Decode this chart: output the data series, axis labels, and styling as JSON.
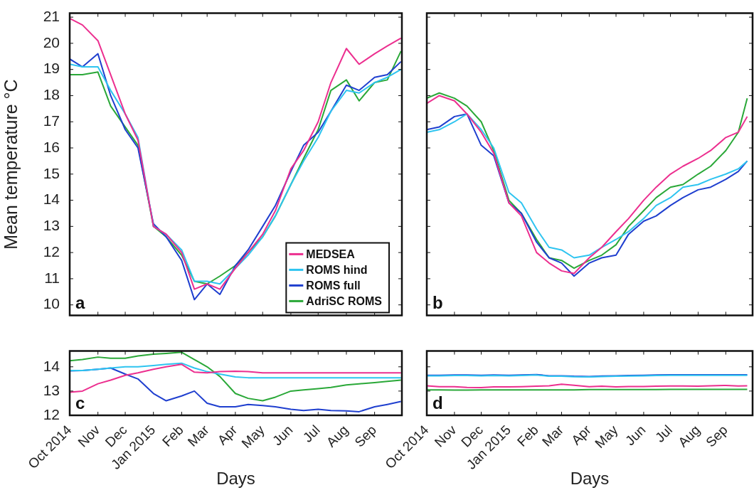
{
  "chart_data": [
    {
      "type": "line",
      "ylabel": "Mean temperature °C",
      "annotations": [
        "a"
      ],
      "legend": "bottom right",
      "tick_labels": "y",
      "x": [
        "2014-10-01",
        "2014-10-15",
        "2014-11-01",
        "2014-11-15",
        "2014-12-01",
        "2014-12-15",
        "2015-01-01",
        "2015-01-15",
        "2015-02-01",
        "2015-02-15",
        "2015-03-01",
        "2015-03-15",
        "2015-04-01",
        "2015-04-15",
        "2015-05-01",
        "2015-05-15",
        "2015-06-01",
        "2015-06-15",
        "2015-07-01",
        "2015-07-15",
        "2015-08-01",
        "2015-08-15",
        "2015-09-01",
        "2015-09-15",
        "2015-09-30"
      ],
      "xlim": [
        "2014-10-01",
        "2015-10-01"
      ],
      "xticks": [
        {
          "value": "2014-10-01",
          "label": null
        },
        {
          "value": "2014-11-01",
          "label": null
        },
        {
          "value": "2014-12-01",
          "label": null
        },
        {
          "value": "2015-01-01",
          "label": null
        },
        {
          "value": "2015-02-01",
          "label": null
        },
        {
          "value": "2015-03-01",
          "label": null
        },
        {
          "value": "2015-04-01",
          "label": null
        },
        {
          "value": "2015-05-01",
          "label": null
        },
        {
          "value": "2015-06-01",
          "label": null
        },
        {
          "value": "2015-07-01",
          "label": null
        },
        {
          "value": "2015-08-01",
          "label": null
        },
        {
          "value": "2015-09-01",
          "label": null
        }
      ],
      "ylim": [
        9.6,
        21.15
      ],
      "yticks": [
        10,
        11,
        12,
        13,
        14,
        15,
        16,
        17,
        18,
        19,
        20,
        21
      ],
      "series": [
        {
          "name": "MEDSEA",
          "color": "#ec2f8f",
          "values": [
            20.95,
            20.7,
            20.1,
            18.8,
            17.3,
            16.3,
            13.0,
            12.7,
            12.0,
            10.6,
            10.8,
            10.6,
            11.4,
            12.0,
            12.7,
            13.6,
            15.2,
            15.9,
            17.0,
            18.5,
            19.8,
            19.2,
            19.6,
            19.9,
            20.2
          ]
        },
        {
          "name": "ROMS hind",
          "color": "#2ec4f0",
          "values": [
            19.2,
            19.1,
            19.1,
            18.2,
            17.3,
            16.4,
            13.0,
            12.7,
            12.1,
            10.9,
            10.9,
            10.8,
            11.4,
            11.9,
            12.6,
            13.4,
            14.6,
            15.5,
            16.4,
            17.4,
            18.2,
            18.1,
            18.5,
            18.7,
            19.0
          ]
        },
        {
          "name": "ROMS full",
          "color": "#1f3fcf",
          "values": [
            19.4,
            19.1,
            19.6,
            18.0,
            16.7,
            16.0,
            13.1,
            12.6,
            11.7,
            10.2,
            10.8,
            10.4,
            11.5,
            12.1,
            13.0,
            13.8,
            15.1,
            16.1,
            16.6,
            17.4,
            18.4,
            18.2,
            18.7,
            18.8,
            19.3
          ]
        },
        {
          "name": "AdriSC ROMS",
          "color": "#2aa838",
          "values": [
            18.8,
            18.8,
            18.9,
            17.6,
            16.8,
            16.1,
            13.0,
            12.6,
            11.9,
            10.9,
            10.8,
            11.1,
            11.5,
            12.0,
            12.6,
            13.4,
            14.6,
            15.6,
            16.7,
            18.2,
            18.6,
            17.8,
            18.5,
            18.6,
            19.7
          ]
        }
      ]
    },
    {
      "type": "line",
      "annotations": [
        "b"
      ],
      "tick_labels": false,
      "x": [
        "2014-10-01",
        "2014-10-15",
        "2014-11-01",
        "2014-11-15",
        "2014-12-01",
        "2014-12-15",
        "2015-01-01",
        "2015-01-15",
        "2015-02-01",
        "2015-02-15",
        "2015-03-01",
        "2015-03-15",
        "2015-04-01",
        "2015-04-15",
        "2015-05-01",
        "2015-05-15",
        "2015-06-01",
        "2015-06-15",
        "2015-07-01",
        "2015-07-15",
        "2015-08-01",
        "2015-08-15",
        "2015-09-01",
        "2015-09-15",
        "2015-09-25"
      ],
      "xlim": [
        "2014-10-01",
        "2015-10-01"
      ],
      "xticks": [
        {
          "value": "2014-10-01",
          "label": null
        },
        {
          "value": "2014-11-01",
          "label": null
        },
        {
          "value": "2014-12-01",
          "label": null
        },
        {
          "value": "2015-01-01",
          "label": null
        },
        {
          "value": "2015-02-01",
          "label": null
        },
        {
          "value": "2015-03-01",
          "label": null
        },
        {
          "value": "2015-04-01",
          "label": null
        },
        {
          "value": "2015-05-01",
          "label": null
        },
        {
          "value": "2015-06-01",
          "label": null
        },
        {
          "value": "2015-07-01",
          "label": null
        },
        {
          "value": "2015-08-01",
          "label": null
        },
        {
          "value": "2015-09-01",
          "label": null
        }
      ],
      "ylim": [
        9.6,
        21.15
      ],
      "yticks": [
        {
          "value": 10,
          "label": null
        },
        {
          "value": 11,
          "label": null
        },
        {
          "value": 12,
          "label": null
        },
        {
          "value": 13,
          "label": null
        },
        {
          "value": 14,
          "label": null
        },
        {
          "value": 15,
          "label": null
        },
        {
          "value": 16,
          "label": null
        },
        {
          "value": 17,
          "label": null
        },
        {
          "value": 18,
          "label": null
        },
        {
          "value": 19,
          "label": null
        },
        {
          "value": 20,
          "label": null
        },
        {
          "value": 21,
          "label": null
        }
      ],
      "series": [
        {
          "color": "#ec2f8f",
          "values": [
            17.7,
            18.0,
            17.8,
            17.3,
            16.6,
            15.8,
            13.9,
            13.4,
            12.0,
            11.6,
            11.3,
            11.2,
            11.8,
            12.2,
            12.8,
            13.3,
            14.0,
            14.5,
            15.0,
            15.3,
            15.6,
            15.9,
            16.4,
            16.6,
            17.2
          ]
        },
        {
          "color": "#2ec4f0",
          "values": [
            16.6,
            16.7,
            17.0,
            17.3,
            16.7,
            16.0,
            14.3,
            13.9,
            12.9,
            12.2,
            12.1,
            11.8,
            11.9,
            12.2,
            12.5,
            12.8,
            13.3,
            13.8,
            14.1,
            14.5,
            14.6,
            14.8,
            15.0,
            15.2,
            15.5
          ]
        },
        {
          "color": "#1f3fcf",
          "values": [
            16.7,
            16.8,
            17.2,
            17.3,
            16.1,
            15.7,
            13.9,
            13.5,
            12.4,
            11.8,
            11.6,
            11.1,
            11.6,
            11.8,
            11.9,
            12.7,
            13.2,
            13.4,
            13.8,
            14.1,
            14.4,
            14.5,
            14.8,
            15.1,
            15.5
          ]
        },
        {
          "color": "#2aa838",
          "values": [
            17.9,
            18.1,
            17.9,
            17.6,
            17.0,
            15.9,
            14.0,
            13.5,
            12.5,
            11.8,
            11.7,
            11.4,
            11.7,
            11.9,
            12.3,
            13.0,
            13.6,
            14.1,
            14.5,
            14.6,
            15.0,
            15.3,
            15.9,
            16.6,
            17.9
          ]
        }
      ]
    },
    {
      "type": "line",
      "xlabel": "Days",
      "annotations": [
        "c"
      ],
      "x": [
        "2014-10-01",
        "2014-10-15",
        "2014-11-01",
        "2014-11-15",
        "2014-12-01",
        "2014-12-15",
        "2015-01-01",
        "2015-01-15",
        "2015-02-01",
        "2015-02-15",
        "2015-03-01",
        "2015-03-15",
        "2015-04-01",
        "2015-04-15",
        "2015-05-01",
        "2015-05-15",
        "2015-06-01",
        "2015-06-15",
        "2015-07-01",
        "2015-07-15",
        "2015-08-01",
        "2015-08-15",
        "2015-09-01",
        "2015-09-15",
        "2015-09-30"
      ],
      "xlim": [
        "2014-10-01",
        "2015-10-01"
      ],
      "xticks": [
        {
          "value": "2014-10-01",
          "label": "Oct 2014"
        },
        {
          "value": "2014-11-01",
          "label": "Nov"
        },
        {
          "value": "2014-12-01",
          "label": "Dec"
        },
        {
          "value": "2015-01-01",
          "label": "Jan 2015"
        },
        {
          "value": "2015-02-01",
          "label": "Feb"
        },
        {
          "value": "2015-03-01",
          "label": "Mar"
        },
        {
          "value": "2015-04-01",
          "label": "Apr"
        },
        {
          "value": "2015-05-01",
          "label": "May"
        },
        {
          "value": "2015-06-01",
          "label": "Jun"
        },
        {
          "value": "2015-07-01",
          "label": "Jul"
        },
        {
          "value": "2015-08-01",
          "label": "Aug"
        },
        {
          "value": "2015-09-01",
          "label": "Sep"
        }
      ],
      "ylim": [
        12,
        14.65
      ],
      "yticks": [
        12,
        13,
        14
      ],
      "series": [
        {
          "color": "#ec2f8f",
          "values": [
            12.95,
            13.0,
            13.3,
            13.45,
            13.65,
            13.75,
            13.9,
            14.0,
            14.1,
            13.78,
            13.75,
            13.8,
            13.82,
            13.8,
            13.75,
            13.75,
            13.75,
            13.75,
            13.75,
            13.75,
            13.75,
            13.75,
            13.75,
            13.75,
            13.75
          ]
        },
        {
          "color": "#2ec4f0",
          "values": [
            13.85,
            13.85,
            13.9,
            13.95,
            14.0,
            14.0,
            14.05,
            14.1,
            14.15,
            13.95,
            13.8,
            13.7,
            13.58,
            13.55,
            13.55,
            13.55,
            13.55,
            13.55,
            13.55,
            13.55,
            13.55,
            13.55,
            13.55,
            13.55,
            13.55
          ]
        },
        {
          "color": "#1f3fcf",
          "values": [
            13.83,
            13.85,
            13.9,
            13.95,
            13.7,
            13.5,
            12.9,
            12.6,
            12.8,
            13.0,
            12.5,
            12.35,
            12.35,
            12.45,
            12.4,
            12.35,
            12.25,
            12.2,
            12.25,
            12.2,
            12.18,
            12.15,
            12.35,
            12.45,
            12.57
          ]
        },
        {
          "color": "#2aa838",
          "values": [
            14.25,
            14.3,
            14.4,
            14.35,
            14.35,
            14.45,
            14.52,
            14.55,
            14.6,
            14.3,
            14.0,
            13.6,
            12.9,
            12.7,
            12.6,
            12.75,
            13.0,
            13.05,
            13.1,
            13.15,
            13.25,
            13.3,
            13.35,
            13.4,
            13.45
          ]
        }
      ]
    },
    {
      "type": "line",
      "xlabel": "Days",
      "annotations": [
        "d"
      ],
      "tick_labels": "x",
      "x": [
        "2014-10-01",
        "2014-10-15",
        "2014-11-01",
        "2014-11-15",
        "2014-12-01",
        "2014-12-15",
        "2015-01-01",
        "2015-01-15",
        "2015-02-01",
        "2015-02-15",
        "2015-03-01",
        "2015-03-15",
        "2015-04-01",
        "2015-04-15",
        "2015-05-01",
        "2015-05-15",
        "2015-06-01",
        "2015-06-15",
        "2015-07-01",
        "2015-07-15",
        "2015-08-01",
        "2015-08-15",
        "2015-09-01",
        "2015-09-15",
        "2015-09-25"
      ],
      "xlim": [
        "2014-10-01",
        "2015-10-01"
      ],
      "xticks": [
        {
          "value": "2014-10-01",
          "label": "Oct 2014"
        },
        {
          "value": "2014-11-01",
          "label": "Nov"
        },
        {
          "value": "2014-12-01",
          "label": "Dec"
        },
        {
          "value": "2015-01-01",
          "label": "Jan 2015"
        },
        {
          "value": "2015-02-01",
          "label": "Feb"
        },
        {
          "value": "2015-03-01",
          "label": "Mar"
        },
        {
          "value": "2015-04-01",
          "label": "Apr"
        },
        {
          "value": "2015-05-01",
          "label": "May"
        },
        {
          "value": "2015-06-01",
          "label": "Jun"
        },
        {
          "value": "2015-07-01",
          "label": "Jul"
        },
        {
          "value": "2015-08-01",
          "label": "Aug"
        },
        {
          "value": "2015-09-01",
          "label": "Sep"
        }
      ],
      "ylim": [
        12,
        14.65
      ],
      "yticks": [
        {
          "value": 12,
          "label": null
        },
        {
          "value": 13,
          "label": null
        },
        {
          "value": 14,
          "label": null
        }
      ],
      "series": [
        {
          "color": "#ec2f8f",
          "values": [
            13.22,
            13.18,
            13.18,
            13.15,
            13.14,
            13.17,
            13.17,
            13.18,
            13.2,
            13.22,
            13.28,
            13.24,
            13.18,
            13.2,
            13.17,
            13.19,
            13.19,
            13.2,
            13.21,
            13.21,
            13.2,
            13.22,
            13.23,
            13.21,
            13.22
          ]
        },
        {
          "color": "#2ec4f0",
          "values": [
            13.63,
            13.63,
            13.64,
            13.64,
            13.63,
            13.64,
            13.63,
            13.64,
            13.66,
            13.61,
            13.61,
            13.59,
            13.58,
            13.6,
            13.61,
            13.62,
            13.63,
            13.64,
            13.65,
            13.65,
            13.65,
            13.65,
            13.65,
            13.65,
            13.65
          ]
        },
        {
          "color": "#1f3fcf",
          "values": [
            13.65,
            13.65,
            13.66,
            13.66,
            13.65,
            13.66,
            13.65,
            13.66,
            13.68,
            13.63,
            13.63,
            13.61,
            13.6,
            13.62,
            13.63,
            13.64,
            13.65,
            13.66,
            13.67,
            13.67,
            13.67,
            13.67,
            13.67,
            13.67,
            13.67
          ]
        },
        {
          "color": "#2aa838",
          "values": [
            13.05,
            13.05,
            13.04,
            13.04,
            13.05,
            13.05,
            13.05,
            13.05,
            13.05,
            13.05,
            13.05,
            13.05,
            13.06,
            13.06,
            13.06,
            13.06,
            13.06,
            13.06,
            13.07,
            13.07,
            13.07,
            13.07,
            13.07,
            13.07,
            13.07
          ]
        }
      ]
    }
  ]
}
